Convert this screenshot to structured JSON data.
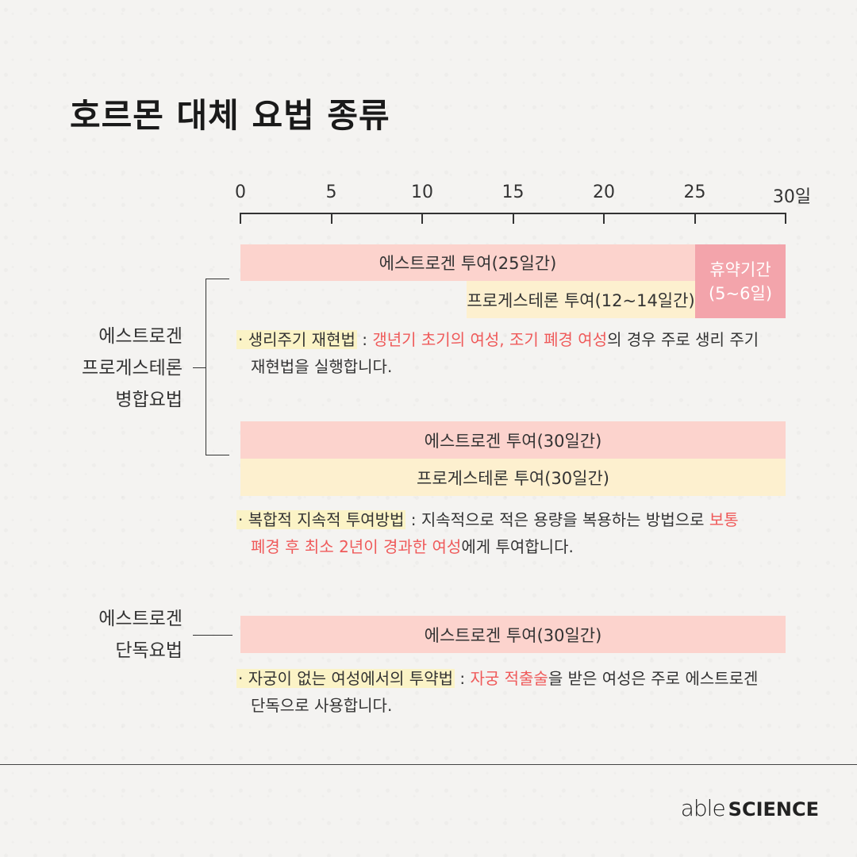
{
  "title": "호르몬 대체 요법 종류",
  "axis": {
    "ticks": [
      "0",
      "5",
      "10",
      "15",
      "20",
      "25",
      "30일"
    ]
  },
  "combined": {
    "label_lines": [
      "에스트로겐",
      "프로게스테론",
      "병합요법"
    ],
    "cyclic": {
      "estrogen_bar": "에스트로겐 투여(25일간)",
      "progesterone_bar": "프로게스테론 투여(12~14일간)",
      "rest_line1": "휴약기간",
      "rest_line2": "(5~6일)"
    },
    "cyclic_note": {
      "bullet": "· ",
      "term": "생리주기 재현법",
      "sep": " : ",
      "red": "갱년기 초기의 여성, 조기 폐경 여성",
      "text_line1_end": "의 경우 주로 생리 주기",
      "text_line2": "재현법을 실행합니다."
    },
    "continuous": {
      "estrogen_bar": "에스트로겐 투여(30일간)",
      "progesterone_bar": "프로게스테론 투여(30일간)"
    },
    "continuous_note": {
      "bullet": "· ",
      "term": "복합적 지속적 투여방법",
      "sep": " : ",
      "text_line1": "지속적으로 적은 용량을  복용하는 방법으로 ",
      "red_line1": "보통",
      "red_line2": "폐경 후 최소 2년이 경과한 여성",
      "text_line2_end": "에게 투여합니다."
    }
  },
  "single": {
    "label_lines": [
      "에스트로겐",
      "단독요법"
    ],
    "estrogen_bar": "에스트로겐 투여(30일간)",
    "note": {
      "bullet": "· ",
      "term": "자궁이 없는 여성에서의 투약법",
      "sep": " : ",
      "red": "자궁 적출술",
      "text_line1_end": "을 받은 여성은 주로 에스트로겐",
      "text_line2": "단독으로 사용합니다."
    }
  },
  "logo": {
    "able": "able",
    "science": "SCIENCE"
  },
  "colors": {
    "estrogen": "#fcd3cd",
    "progesterone": "#fdf0cf",
    "rest": "#f3a4ab",
    "highlight": "#fbf3c6",
    "red_text": "#ef5a5a"
  }
}
